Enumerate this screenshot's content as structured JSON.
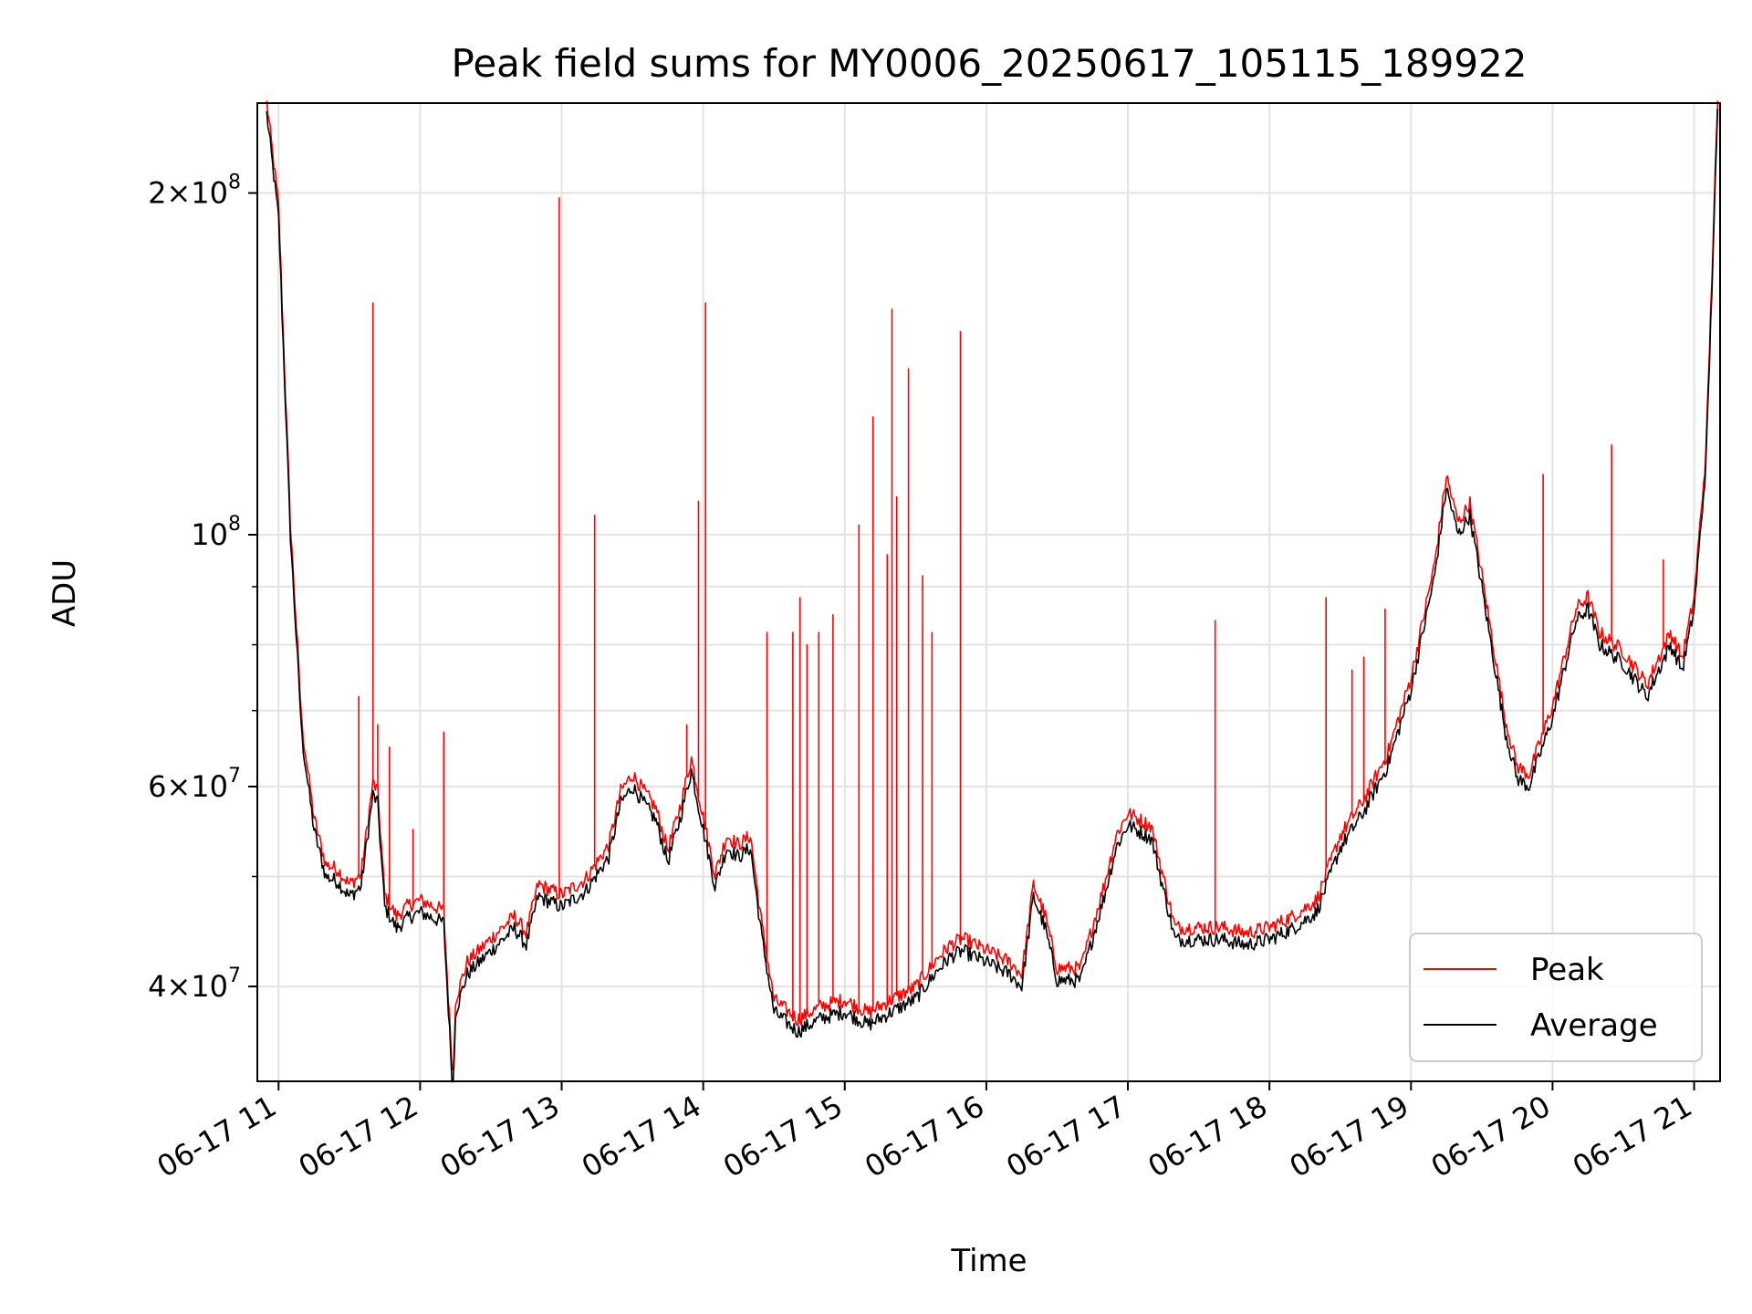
{
  "chart_data": {
    "type": "line",
    "title": "Peak field sums for MY0006_20250617_105115_189922",
    "xlabel": "Time",
    "ylabel": "ADU",
    "yscale": "log",
    "ylim": [
      33000000,
      240000000
    ],
    "xlim": [
      "2025-06-17T10:51:00",
      "2025-06-17T21:11:00"
    ],
    "grid": true,
    "legend": {
      "position": "lower-right",
      "entries": [
        "Peak",
        "Average"
      ]
    },
    "x_ticks": [
      "06-17 11",
      "06-17 12",
      "06-17 13",
      "06-17 14",
      "06-17 15",
      "06-17 16",
      "06-17 17",
      "06-17 18",
      "06-17 19",
      "06-17 20",
      "06-17 21"
    ],
    "y_ticks": [
      {
        "mantissa": "4",
        "exp": "7",
        "value": 40000000
      },
      {
        "mantissa": "6",
        "exp": "7",
        "value": 60000000
      },
      {
        "mantissa": "",
        "exp": "8",
        "value": 100000000
      },
      {
        "mantissa": "2",
        "exp": "8",
        "value": 200000000
      }
    ],
    "colors": {
      "peak": "#ff0000",
      "average": "#000000"
    },
    "series": [
      {
        "name": "Average",
        "x": [
          "10:55",
          "11:00",
          "11:05",
          "11:10",
          "11:15",
          "11:20",
          "11:25",
          "11:30",
          "11:35",
          "11:40",
          "11:42",
          "11:45",
          "11:50",
          "11:55",
          "12:00",
          "12:10",
          "12:14",
          "12:15",
          "12:20",
          "12:30",
          "12:40",
          "12:45",
          "12:50",
          "13:00",
          "13:10",
          "13:20",
          "13:25",
          "13:30",
          "13:40",
          "13:45",
          "13:50",
          "13:55",
          "14:00",
          "14:05",
          "14:10",
          "14:15",
          "14:20",
          "14:25",
          "14:30",
          "14:40",
          "14:50",
          "15:00",
          "15:10",
          "15:20",
          "15:30",
          "15:40",
          "15:45",
          "15:50",
          "16:00",
          "16:10",
          "16:15",
          "16:20",
          "16:25",
          "16:30",
          "16:40",
          "16:50",
          "16:55",
          "17:00",
          "17:10",
          "17:20",
          "17:30",
          "17:40",
          "17:50",
          "18:00",
          "18:10",
          "18:20",
          "18:30",
          "18:40",
          "18:50",
          "19:00",
          "19:10",
          "19:15",
          "19:20",
          "19:25",
          "19:30",
          "19:40",
          "19:45",
          "19:50",
          "20:00",
          "20:10",
          "20:15",
          "20:20",
          "20:30",
          "20:40",
          "20:45",
          "20:50",
          "20:55",
          "21:00",
          "21:05",
          "21:10"
        ],
        "y": [
          235000000,
          190000000,
          100000000,
          66000000,
          55000000,
          50000000,
          49500000,
          48000000,
          49000000,
          59000000,
          58000000,
          47000000,
          45000000,
          46000000,
          46500000,
          45500000,
          32000000,
          38000000,
          41000000,
          43000000,
          45000000,
          43500000,
          48000000,
          47000000,
          48500000,
          52000000,
          58000000,
          60000000,
          56000000,
          51500000,
          56000000,
          62000000,
          55000000,
          49000000,
          53000000,
          52000000,
          53000000,
          44000000,
          38000000,
          36500000,
          37500000,
          38000000,
          37000000,
          38000000,
          39000000,
          41500000,
          42500000,
          43000000,
          42000000,
          41000000,
          40000000,
          48000000,
          45000000,
          40500000,
          40500000,
          48000000,
          53000000,
          55500000,
          54000000,
          44000000,
          44000000,
          44000000,
          43500000,
          44000000,
          45000000,
          46500000,
          53000000,
          57000000,
          62500000,
          73000000,
          92000000,
          110000000,
          100000000,
          104000000,
          90000000,
          67000000,
          61000000,
          60000000,
          69000000,
          84000000,
          86000000,
          80000000,
          77000000,
          72000000,
          76000000,
          80000000,
          76000000,
          86000000,
          115000000,
          235000000
        ]
      },
      {
        "name": "Peak",
        "offset_ratio": 1.025,
        "spikes": [
          {
            "t": "10:52",
            "y": 225000000
          },
          {
            "t": "11:34",
            "y": 72000000
          },
          {
            "t": "11:40",
            "y": 160000000
          },
          {
            "t": "11:42",
            "y": 68000000
          },
          {
            "t": "11:47",
            "y": 65000000
          },
          {
            "t": "11:57",
            "y": 55000000
          },
          {
            "t": "12:10",
            "y": 67000000
          },
          {
            "t": "12:59",
            "y": 198000000
          },
          {
            "t": "13:14",
            "y": 104000000
          },
          {
            "t": "13:53",
            "y": 68000000
          },
          {
            "t": "13:58",
            "y": 107000000
          },
          {
            "t": "14:01",
            "y": 160000000
          },
          {
            "t": "14:27",
            "y": 82000000
          },
          {
            "t": "14:38",
            "y": 82000000
          },
          {
            "t": "14:41",
            "y": 88000000
          },
          {
            "t": "14:44",
            "y": 80000000
          },
          {
            "t": "14:49",
            "y": 82000000
          },
          {
            "t": "14:55",
            "y": 85000000
          },
          {
            "t": "15:06",
            "y": 102000000
          },
          {
            "t": "15:12",
            "y": 127000000
          },
          {
            "t": "15:18",
            "y": 96000000
          },
          {
            "t": "15:20",
            "y": 158000000
          },
          {
            "t": "15:22",
            "y": 108000000
          },
          {
            "t": "15:27",
            "y": 140000000
          },
          {
            "t": "15:33",
            "y": 92000000
          },
          {
            "t": "15:37",
            "y": 82000000
          },
          {
            "t": "15:49",
            "y": 151000000
          },
          {
            "t": "17:37",
            "y": 84000000
          },
          {
            "t": "18:24",
            "y": 88000000
          },
          {
            "t": "18:35",
            "y": 76000000
          },
          {
            "t": "18:40",
            "y": 78000000
          },
          {
            "t": "18:49",
            "y": 86000000
          },
          {
            "t": "19:56",
            "y": 113000000
          },
          {
            "t": "20:25",
            "y": 120000000
          },
          {
            "t": "20:47",
            "y": 95000000
          }
        ]
      }
    ]
  }
}
